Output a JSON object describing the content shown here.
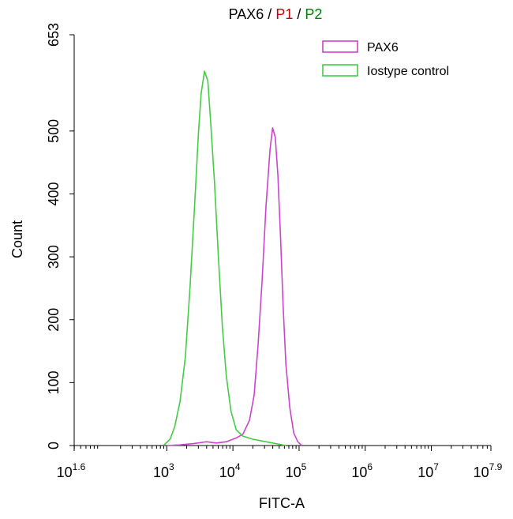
{
  "title": {
    "parts": [
      {
        "text": "PAX6",
        "color": "#000000"
      },
      {
        "text": " / ",
        "color": "#000000"
      },
      {
        "text": "P1",
        "color": "#cc0000"
      },
      {
        "text": " / ",
        "color": "#000000"
      },
      {
        "text": "P2",
        "color": "#008000"
      }
    ]
  },
  "chart_data": {
    "type": "line",
    "title": "PAX6 / P1 / P2",
    "xlabel": "FITC-A",
    "ylabel": "Count",
    "x_scale": "log10",
    "xlim": [
      1.6,
      7.9
    ],
    "ylim": [
      0,
      653
    ],
    "x_ticks": [
      {
        "base": "10",
        "exp": "1.6",
        "value": 1.6
      },
      {
        "base": "10",
        "exp": "3",
        "value": 3
      },
      {
        "base": "10",
        "exp": "4",
        "value": 4
      },
      {
        "base": "10",
        "exp": "5",
        "value": 5
      },
      {
        "base": "10",
        "exp": "6",
        "value": 6
      },
      {
        "base": "10",
        "exp": "7",
        "value": 7
      },
      {
        "base": "10",
        "exp": "7.9",
        "value": 7.9
      }
    ],
    "y_ticks": [
      {
        "label": "0",
        "value": 0
      },
      {
        "label": "100",
        "value": 100
      },
      {
        "label": "200",
        "value": 200
      },
      {
        "label": "300",
        "value": 300
      },
      {
        "label": "400",
        "value": 400
      },
      {
        "label": "500",
        "value": 500
      },
      {
        "label": "653",
        "value": 653
      }
    ],
    "legend_position": "top-right",
    "series": [
      {
        "name": "PAX6",
        "color": "#cc44cc",
        "points": [
          [
            3.0,
            0
          ],
          [
            3.2,
            1
          ],
          [
            3.4,
            3
          ],
          [
            3.6,
            6
          ],
          [
            3.75,
            4
          ],
          [
            3.9,
            6
          ],
          [
            4.05,
            12
          ],
          [
            4.15,
            18
          ],
          [
            4.25,
            40
          ],
          [
            4.32,
            80
          ],
          [
            4.38,
            160
          ],
          [
            4.44,
            260
          ],
          [
            4.5,
            380
          ],
          [
            4.56,
            470
          ],
          [
            4.6,
            505
          ],
          [
            4.64,
            490
          ],
          [
            4.68,
            430
          ],
          [
            4.72,
            330
          ],
          [
            4.76,
            220
          ],
          [
            4.8,
            130
          ],
          [
            4.86,
            60
          ],
          [
            4.92,
            20
          ],
          [
            4.98,
            6
          ],
          [
            5.04,
            0
          ]
        ]
      },
      {
        "name": "Iostype control",
        "color": "#44cc44",
        "points": [
          [
            2.95,
            0
          ],
          [
            3.05,
            10
          ],
          [
            3.12,
            30
          ],
          [
            3.2,
            70
          ],
          [
            3.28,
            140
          ],
          [
            3.35,
            250
          ],
          [
            3.42,
            380
          ],
          [
            3.48,
            500
          ],
          [
            3.52,
            560
          ],
          [
            3.57,
            595
          ],
          [
            3.62,
            580
          ],
          [
            3.66,
            520
          ],
          [
            3.72,
            420
          ],
          [
            3.78,
            300
          ],
          [
            3.84,
            190
          ],
          [
            3.9,
            110
          ],
          [
            3.97,
            55
          ],
          [
            4.05,
            25
          ],
          [
            4.15,
            15
          ],
          [
            4.3,
            10
          ],
          [
            4.5,
            6
          ],
          [
            4.7,
            2
          ],
          [
            4.8,
            0
          ]
        ]
      }
    ],
    "grid": false
  }
}
